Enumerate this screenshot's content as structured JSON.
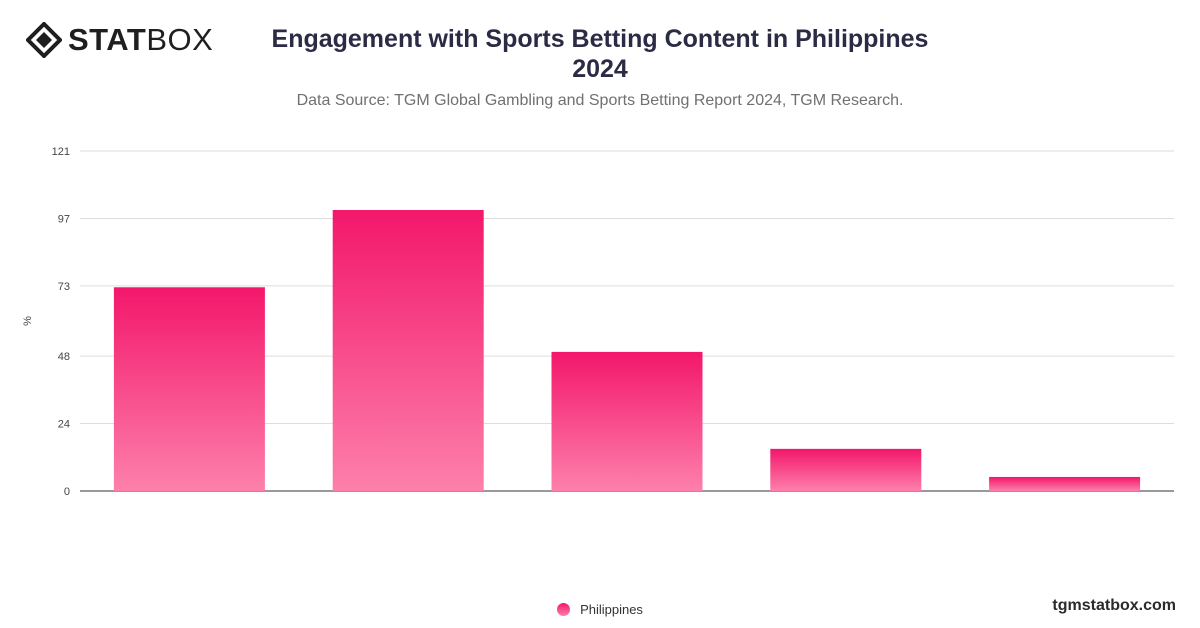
{
  "brand": {
    "logo_text_bold": "STAT",
    "logo_text_light": "BOX",
    "watermark": "tgmstatbox.com"
  },
  "header": {
    "title": "Engagement with Sports Betting Content in Philippines 2024",
    "subtitle": "Data Source: TGM Global Gambling and Sports Betting Report 2024, TGM Research."
  },
  "chart_data": {
    "type": "bar",
    "categories": [
      "",
      "",
      "",
      "",
      ""
    ],
    "series": [
      {
        "name": "Philippines",
        "values": [
          72.5,
          100,
          49.5,
          15,
          5
        ],
        "color_top": "#f3176b",
        "color_bottom": "#fd80ab"
      }
    ],
    "ylabel": "%",
    "xlabel": "",
    "ylim": [
      0,
      121
    ],
    "yticks": [
      0,
      24,
      48,
      73,
      97,
      121
    ],
    "grid": true,
    "legend_position": "bottom-center"
  }
}
